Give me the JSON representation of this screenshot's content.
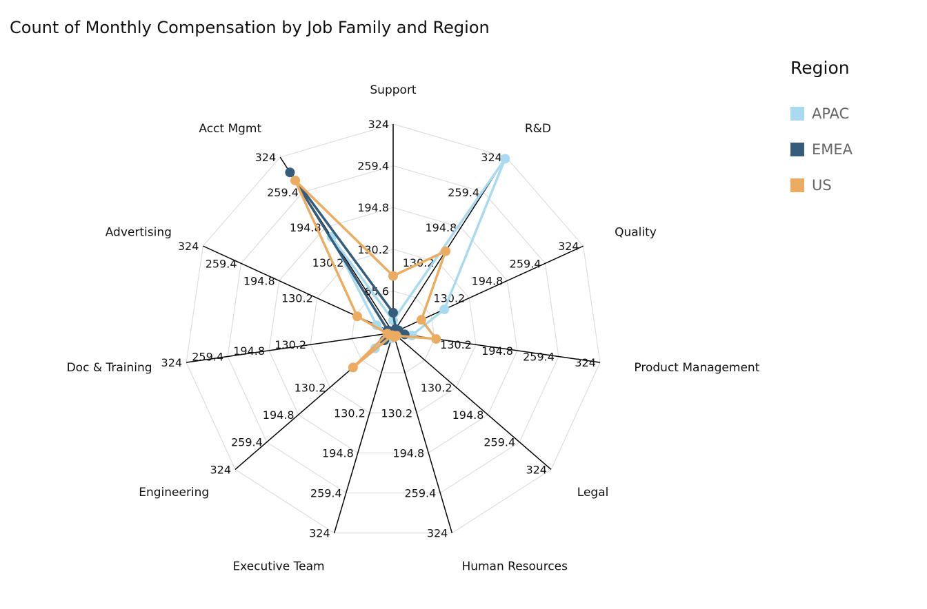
{
  "chart_data": {
    "type": "radar",
    "title": "Count of Monthly Compensation by Job Family and Region",
    "categories": [
      "Support",
      "R&D",
      "Quality",
      "Product Management",
      "Legal",
      "Human Resources",
      "Executive Team",
      "Engineering",
      "Doc & Training",
      "Advertising",
      "Acct Mgmt"
    ],
    "axis_range": [
      1,
      324
    ],
    "ticks": [
      "1",
      "65.6",
      "130.2",
      "194.8",
      "259.4",
      "324"
    ],
    "tick_values": [
      1,
      65.6,
      130.2,
      194.8,
      259.4,
      324
    ],
    "grid": true,
    "legend_title": "Region",
    "legend_position": "right",
    "series": [
      {
        "name": "APAC",
        "color": "#a8daf0",
        "values": [
          20,
          321,
          88,
          30,
          5,
          6,
          10,
          38,
          8,
          29,
          177
        ]
      },
      {
        "name": "EMEA",
        "color": "#355c7a",
        "values": [
          32,
          8,
          10,
          19,
          4,
          3,
          3,
          19,
          10,
          10,
          296
        ]
      },
      {
        "name": "US",
        "color": "#ebab61",
        "values": [
          89,
          151,
          49,
          68,
          8,
          8,
          5,
          83,
          10,
          62,
          281
        ]
      }
    ]
  }
}
